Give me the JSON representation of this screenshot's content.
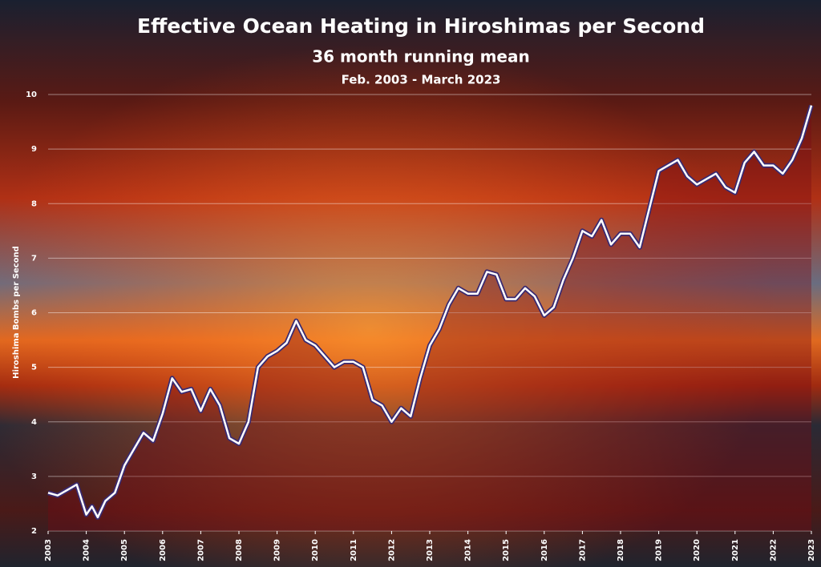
{
  "chart_data": {
    "type": "line",
    "title": "Effective Ocean Heating in Hiroshimas per Second",
    "subtitle": "36 month running mean",
    "date_range": "Feb. 2003 - March 2023",
    "y_label": "Hiroshima  Bombs per Second",
    "x": [
      2003,
      2003.25,
      2003.5,
      2003.75,
      2004,
      2004.15,
      2004.3,
      2004.5,
      2004.75,
      2005,
      2005.25,
      2005.5,
      2005.75,
      2006,
      2006.25,
      2006.5,
      2006.75,
      2007,
      2007.25,
      2007.5,
      2007.75,
      2008,
      2008.25,
      2008.5,
      2008.75,
      2009,
      2009.25,
      2009.5,
      2009.75,
      2010,
      2010.25,
      2010.5,
      2010.75,
      2011,
      2011.25,
      2011.5,
      2011.75,
      2012,
      2012.25,
      2012.5,
      2012.75,
      2013,
      2013.25,
      2013.5,
      2013.75,
      2014,
      2014.25,
      2014.5,
      2014.75,
      2015,
      2015.25,
      2015.5,
      2015.75,
      2016,
      2016.25,
      2016.5,
      2016.75,
      2017,
      2017.25,
      2017.5,
      2017.75,
      2018,
      2018.25,
      2018.5,
      2018.75,
      2019,
      2019.25,
      2019.5,
      2019.75,
      2020,
      2020.25,
      2020.5,
      2020.75,
      2021,
      2021.25,
      2021.5,
      2021.75,
      2022,
      2022.25,
      2022.5,
      2022.75,
      2023
    ],
    "series": [
      {
        "name": "Effective Ocean Heating",
        "color": "#ffffff",
        "values": [
          2.7,
          2.65,
          2.75,
          2.85,
          2.3,
          2.45,
          2.25,
          2.55,
          2.7,
          3.2,
          3.5,
          3.8,
          3.65,
          4.15,
          4.8,
          4.55,
          4.6,
          4.2,
          4.6,
          4.3,
          3.7,
          3.6,
          4.0,
          5.0,
          5.2,
          5.3,
          5.45,
          5.85,
          5.5,
          5.4,
          5.2,
          5.0,
          5.1,
          5.1,
          5.0,
          4.4,
          4.3,
          4.0,
          4.25,
          4.1,
          4.8,
          5.4,
          5.7,
          6.15,
          6.45,
          6.35,
          6.35,
          6.75,
          6.7,
          6.25,
          6.25,
          6.45,
          6.3,
          5.95,
          6.1,
          6.6,
          7.0,
          7.5,
          7.4,
          7.7,
          7.25,
          7.45,
          7.45,
          7.2,
          7.9,
          8.6,
          8.7,
          8.8,
          8.5,
          8.35,
          8.45,
          8.55,
          8.3,
          8.2,
          8.75,
          8.95,
          8.7,
          8.7,
          8.55,
          8.8,
          9.2,
          9.8
        ]
      }
    ],
    "xlim": [
      2003,
      2023
    ],
    "xticks": [
      2003,
      2004,
      2005,
      2006,
      2007,
      2008,
      2009,
      2010,
      2011,
      2012,
      2013,
      2014,
      2015,
      2016,
      2017,
      2018,
      2019,
      2020,
      2021,
      2022,
      2023
    ],
    "ylim": [
      2,
      10
    ],
    "yticks": [
      2,
      3,
      4,
      5,
      6,
      7,
      8,
      9,
      10
    ],
    "grid": true
  }
}
